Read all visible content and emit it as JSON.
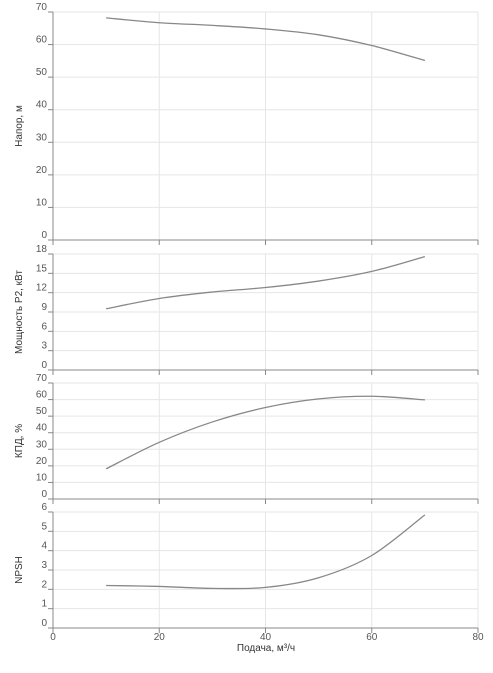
{
  "x_axis": {
    "label": "Подача, м³/ч",
    "min": 0,
    "max": 80,
    "ticks": [
      0,
      20,
      40,
      60,
      80
    ],
    "tick_labels": [
      "0",
      "20",
      "40",
      "60",
      "80"
    ]
  },
  "colors": {
    "curve": "#888888",
    "grid": "#e6e6e6",
    "axis": "#888888",
    "text": "#555555"
  },
  "chart_data": [
    {
      "type": "line",
      "ylabel": "Напор, м",
      "ylim": [
        0,
        70
      ],
      "yticks": [
        0,
        10,
        20,
        30,
        40,
        50,
        60,
        70
      ],
      "ytick_labels": [
        "0",
        "10",
        "20",
        "30",
        "40",
        "50",
        "60",
        "70"
      ],
      "grid": true,
      "x": [
        10,
        20,
        30,
        40,
        50,
        60,
        70
      ],
      "y": [
        68.2,
        66.7,
        65.9,
        64.8,
        63.0,
        59.7,
        55.1
      ]
    },
    {
      "type": "line",
      "ylabel": "Мощность P2, кВт",
      "ylim": [
        0,
        18
      ],
      "yticks": [
        0,
        3,
        6,
        9,
        12,
        15,
        18
      ],
      "ytick_labels": [
        "0",
        "3",
        "6",
        "9",
        "12",
        "15",
        "18"
      ],
      "grid": true,
      "x": [
        10,
        20,
        30,
        40,
        50,
        60,
        70
      ],
      "y": [
        9.5,
        11.1,
        12.1,
        12.8,
        13.8,
        15.3,
        17.6
      ]
    },
    {
      "type": "line",
      "ylabel": "КПД, %",
      "ylim": [
        0,
        70
      ],
      "yticks": [
        0,
        10,
        20,
        30,
        40,
        50,
        60,
        70
      ],
      "ytick_labels": [
        "0",
        "10",
        "20",
        "30",
        "40",
        "50",
        "60",
        "70"
      ],
      "grid": true,
      "x": [
        10,
        20,
        30,
        40,
        50,
        60,
        70
      ],
      "y": [
        18.2,
        34.2,
        46.5,
        55.2,
        60.4,
        62.0,
        59.8
      ]
    },
    {
      "type": "line",
      "ylabel": "NPSH",
      "ylim": [
        0,
        6
      ],
      "yticks": [
        0,
        1,
        2,
        3,
        4,
        5,
        6
      ],
      "ytick_labels": [
        "0",
        "1",
        "2",
        "3",
        "4",
        "5",
        "6"
      ],
      "grid": true,
      "x": [
        10,
        20,
        30,
        40,
        50,
        60,
        70
      ],
      "y": [
        2.2,
        2.15,
        2.05,
        2.1,
        2.6,
        3.75,
        5.85
      ]
    }
  ]
}
